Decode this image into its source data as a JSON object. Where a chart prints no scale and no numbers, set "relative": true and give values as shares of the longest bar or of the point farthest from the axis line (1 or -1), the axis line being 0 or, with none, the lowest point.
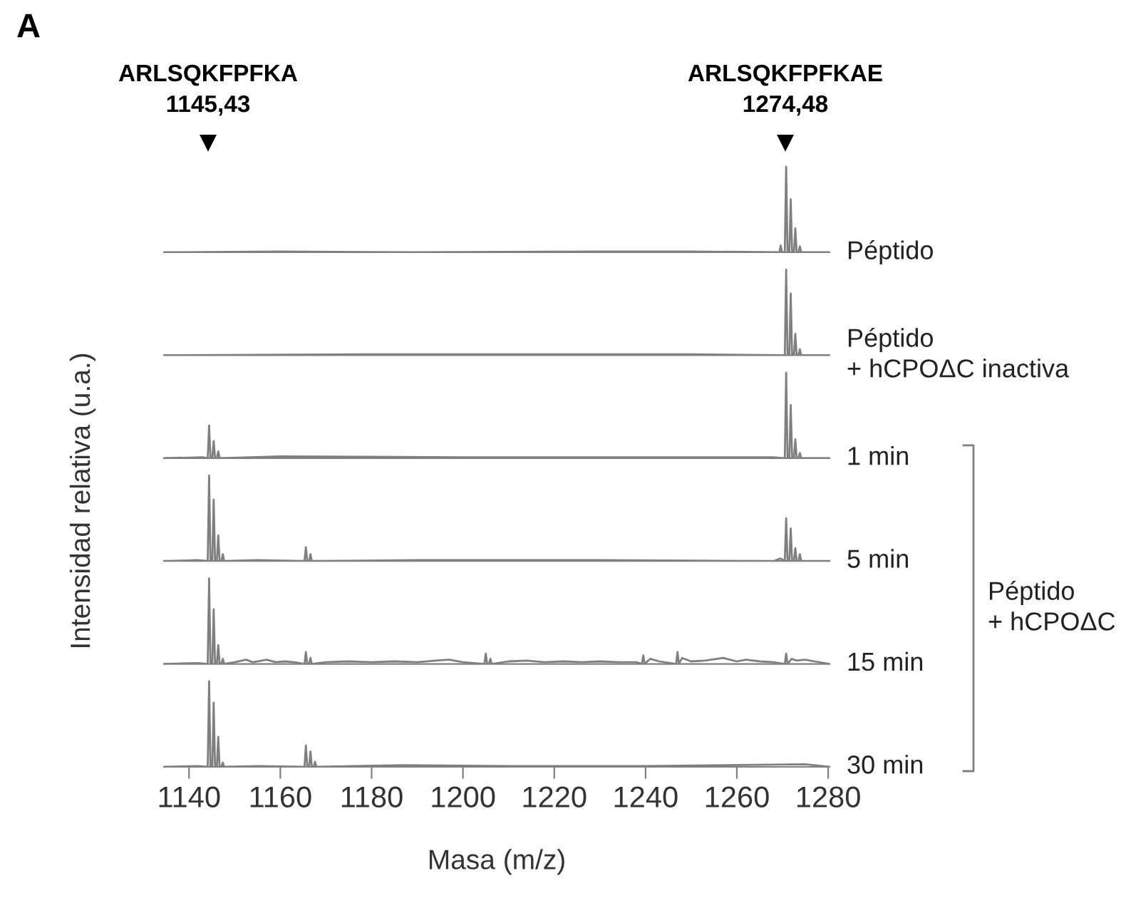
{
  "chart_data": [
    {
      "type": "line",
      "relative": true,
      "tick_labels": false,
      "xlim": [
        1134.5,
        1280.3
      ],
      "ylabel": "Intensidad relativa (u.a.)",
      "annotations": [
        "A",
        "ARLSQKFPFKA\n1145,43",
        "ARLSQKFPFKAE\n1274,48"
      ],
      "series": [
        {
          "name": "Péptido",
          "color": "#7f7f7f",
          "x": [
            1134.5,
            1160,
            1190,
            1230,
            1250,
            1269.3,
            1269.6,
            1269.9,
            1270.5,
            1270.8,
            1271.1,
            1271.5,
            1271.8,
            1272.1,
            1272.5,
            1272.8,
            1273.1,
            1273.5,
            1273.8,
            1274.1,
            1280.3
          ],
          "values": [
            0,
            0.01,
            0,
            0.01,
            0.01,
            0,
            0.08,
            0,
            0,
            1,
            0,
            0,
            0.62,
            0,
            0,
            0.28,
            0,
            0,
            0.07,
            0,
            0
          ]
        }
      ]
    },
    {
      "type": "line",
      "relative": true,
      "tick_labels": false,
      "xlim": [
        1134.5,
        1280.3
      ],
      "series": [
        {
          "name": "Péptido\n+ hCPOΔC inactiva",
          "color": "#7f7f7f",
          "x": [
            1134.5,
            1180,
            1200,
            1250,
            1270.5,
            1270.8,
            1271.1,
            1271.5,
            1271.8,
            1272.1,
            1272.5,
            1272.8,
            1273.1,
            1273.5,
            1273.8,
            1274.1,
            1280.3
          ],
          "values": [
            0,
            0.01,
            0.01,
            0.01,
            0,
            1,
            0,
            0,
            0.72,
            0,
            0,
            0.25,
            0,
            0,
            0.07,
            0,
            0
          ]
        }
      ]
    },
    {
      "type": "line",
      "relative": true,
      "tick_labels": false,
      "xlim": [
        1134.5,
        1280.3
      ],
      "annotations": [
        "Péptido\n+ hCPOΔC"
      ],
      "series": [
        {
          "name": "1 min",
          "color": "#7f7f7f",
          "x": [
            1134.5,
            1143,
            1144.1,
            1144.4,
            1144.7,
            1145.1,
            1145.4,
            1145.7,
            1146.1,
            1146.4,
            1146.7,
            1160,
            1200,
            1240,
            1268,
            1270.5,
            1270.8,
            1271.1,
            1271.5,
            1271.8,
            1272.1,
            1272.5,
            1272.8,
            1273.1,
            1273.5,
            1273.8,
            1274.1,
            1280.3
          ],
          "values": [
            0,
            0.01,
            0,
            0.38,
            0,
            0,
            0.2,
            0,
            0,
            0.08,
            0,
            0.02,
            0.01,
            0.01,
            0.01,
            0,
            1,
            0,
            0,
            0.62,
            0,
            0,
            0.22,
            0,
            0,
            0.06,
            0,
            0
          ]
        }
      ]
    },
    {
      "type": "line",
      "relative": true,
      "tick_labels": false,
      "xlim": [
        1134.5,
        1280.3
      ],
      "series": [
        {
          "name": "5 min",
          "color": "#7f7f7f",
          "x": [
            1134.5,
            1142,
            1144.1,
            1144.4,
            1144.7,
            1145.1,
            1145.4,
            1145.7,
            1146.1,
            1146.4,
            1146.7,
            1147.1,
            1147.4,
            1147.7,
            1155,
            1165.3,
            1165.6,
            1165.9,
            1166.3,
            1166.6,
            1166.9,
            1190,
            1230,
            1268,
            1269.6,
            1270.5,
            1270.8,
            1271.1,
            1271.5,
            1271.8,
            1272.1,
            1272.5,
            1272.8,
            1273.1,
            1273.5,
            1273.8,
            1274.1,
            1280.3
          ],
          "values": [
            0,
            0.01,
            0,
            1,
            0,
            0,
            0.72,
            0,
            0,
            0.3,
            0,
            0,
            0.08,
            0,
            0.01,
            0,
            0.16,
            0,
            0,
            0.08,
            0,
            0.01,
            0.01,
            0,
            0.03,
            0,
            0.5,
            0,
            0,
            0.38,
            0,
            0,
            0.15,
            0,
            0,
            0.08,
            0,
            0
          ]
        }
      ]
    },
    {
      "type": "line",
      "relative": true,
      "tick_labels": false,
      "xlim": [
        1134.5,
        1280.3
      ],
      "series": [
        {
          "name": "15 min",
          "color": "#7f7f7f",
          "x": [
            1134.5,
            1142,
            1144.1,
            1144.4,
            1144.7,
            1145.1,
            1145.4,
            1145.7,
            1146.1,
            1146.4,
            1146.7,
            1147.1,
            1147.4,
            1147.7,
            1150,
            1152.5,
            1154,
            1156,
            1157,
            1159,
            1161,
            1163,
            1165.3,
            1165.6,
            1165.9,
            1166.3,
            1166.6,
            1166.9,
            1170,
            1175,
            1180,
            1185,
            1190,
            1194,
            1197,
            1200,
            1204.7,
            1205,
            1205.3,
            1205.7,
            1206,
            1206.3,
            1210,
            1214,
            1218,
            1222,
            1226,
            1230,
            1234,
            1238,
            1239.2,
            1239.5,
            1239.8,
            1241,
            1243,
            1246.7,
            1247,
            1247.3,
            1248,
            1250,
            1253,
            1257,
            1260,
            1262,
            1265,
            1268,
            1270.5,
            1270.8,
            1271.1,
            1272,
            1273,
            1275,
            1277,
            1280.3
          ],
          "values": [
            0,
            0.01,
            0,
            1,
            0,
            0,
            0.64,
            0,
            0,
            0.22,
            0,
            0,
            0.06,
            0,
            0.02,
            0.05,
            0.02,
            0.04,
            0.05,
            0.02,
            0.03,
            0.02,
            0,
            0.14,
            0,
            0,
            0.07,
            0,
            0.02,
            0.03,
            0.02,
            0.03,
            0.02,
            0.04,
            0.05,
            0.02,
            0,
            0.12,
            0,
            0,
            0.06,
            0,
            0.03,
            0.04,
            0.02,
            0.03,
            0.02,
            0.03,
            0.02,
            0.02,
            0,
            0.1,
            0,
            0.06,
            0.03,
            0,
            0.14,
            0,
            0.07,
            0.03,
            0.04,
            0.07,
            0.03,
            0.05,
            0.03,
            0.02,
            0,
            0.12,
            0,
            0.06,
            0.04,
            0.05,
            0.03,
            0
          ]
        }
      ]
    },
    {
      "type": "line",
      "relative": true,
      "tick_labels": "x",
      "xlim": [
        1134.5,
        1280.3
      ],
      "xticks": [
        1140,
        1160,
        1180,
        1200,
        1220,
        1240,
        1260,
        1280
      ],
      "xlabel": "Masa (m/z)",
      "series": [
        {
          "name": "30 min",
          "color": "#7f7f7f",
          "x": [
            1134.5,
            1142,
            1144.1,
            1144.4,
            1144.7,
            1145.1,
            1145.4,
            1145.7,
            1146.1,
            1146.4,
            1146.7,
            1147.1,
            1147.4,
            1147.7,
            1155,
            1165.3,
            1165.6,
            1165.9,
            1166.3,
            1166.6,
            1166.9,
            1167.3,
            1167.6,
            1167.9,
            1187,
            1210,
            1240,
            1275,
            1280.3
          ],
          "values": [
            0,
            0.01,
            0,
            1,
            0,
            0,
            0.75,
            0,
            0,
            0.35,
            0,
            0,
            0.05,
            0,
            0.01,
            0,
            0.25,
            0,
            0,
            0.18,
            0,
            0,
            0.06,
            0,
            0.02,
            0.01,
            0.01,
            0.03,
            0
          ]
        }
      ]
    }
  ]
}
